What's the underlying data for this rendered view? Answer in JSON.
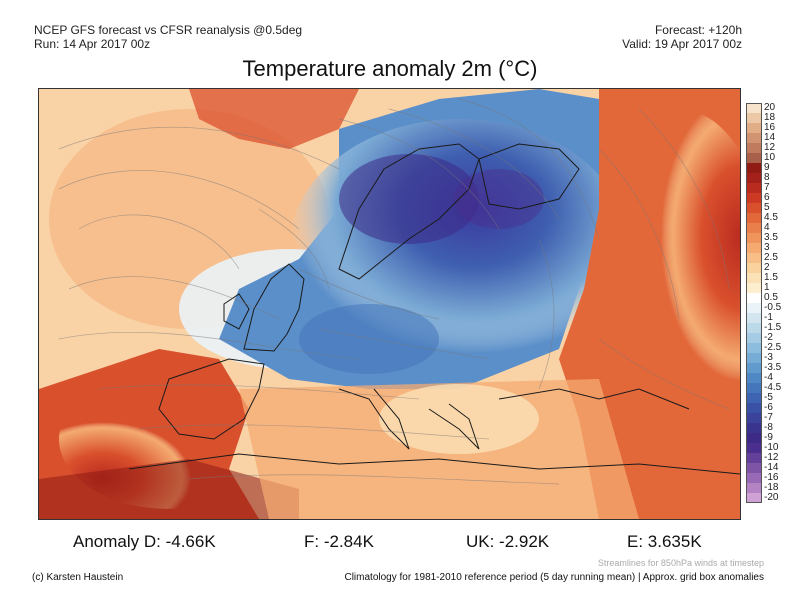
{
  "header": {
    "model_line": "NCEP GFS forecast vs CFSR reanalysis @0.5deg",
    "run_line": "Run: 14 Apr 2017 00z",
    "forecast_line": "Forecast: +120h",
    "valid_line": "Valid: 19 Apr 2017 00z"
  },
  "title": "Temperature anomaly 2m (°C)",
  "colorbar": {
    "labels": [
      "20",
      "18",
      "16",
      "14",
      "12",
      "10",
      "9",
      "8",
      "7",
      "6",
      "5",
      "4.5",
      "4",
      "3.5",
      "3",
      "2.5",
      "2",
      "1.5",
      "1",
      "0.5",
      "-0.5",
      "-1",
      "-1.5",
      "-2",
      "-2.5",
      "-3",
      "-3.5",
      "-4",
      "-4.5",
      "-5",
      "-6",
      "-7",
      "-8",
      "-9",
      "-10",
      "-12",
      "-14",
      "-16",
      "-18",
      "-20"
    ],
    "colors": [
      "#f7e3cc",
      "#ecc8a6",
      "#e0ad86",
      "#d19472",
      "#c07a5e",
      "#a8604a",
      "#8f1b14",
      "#a4201a",
      "#b92a1f",
      "#cc3a24",
      "#d9502d",
      "#e2683a",
      "#e97f4a",
      "#ef955c",
      "#f4aa70",
      "#f7bf87",
      "#f9d29e",
      "#fbe1b6",
      "#fdeecf",
      "#ffffff",
      "#e9f3f8",
      "#d3e6f0",
      "#bcd9ea",
      "#a5cce4",
      "#8dbdde",
      "#76acd6",
      "#619bce",
      "#4f88c5",
      "#4576bb",
      "#3e63b0",
      "#3a52a5",
      "#3a429a",
      "#3b348f",
      "#3c2a86",
      "#4a2f8e",
      "#634099",
      "#7d54a6",
      "#9869b4",
      "#b483c4",
      "#cfa2d6"
    ]
  },
  "stats": {
    "d": "Anomaly D: -4.66K",
    "f": "F: -2.84K",
    "uk": "UK: -2.92K",
    "e": "E: 3.635K"
  },
  "footer": {
    "credit": "(c) Karsten Haustein",
    "streamlines_note": "Streamlines for 850hPa winds at timestep",
    "climatology_note": "Climatology for 1981-2010 reference period (5 day running mean) | Approx. grid box anomalies"
  }
}
